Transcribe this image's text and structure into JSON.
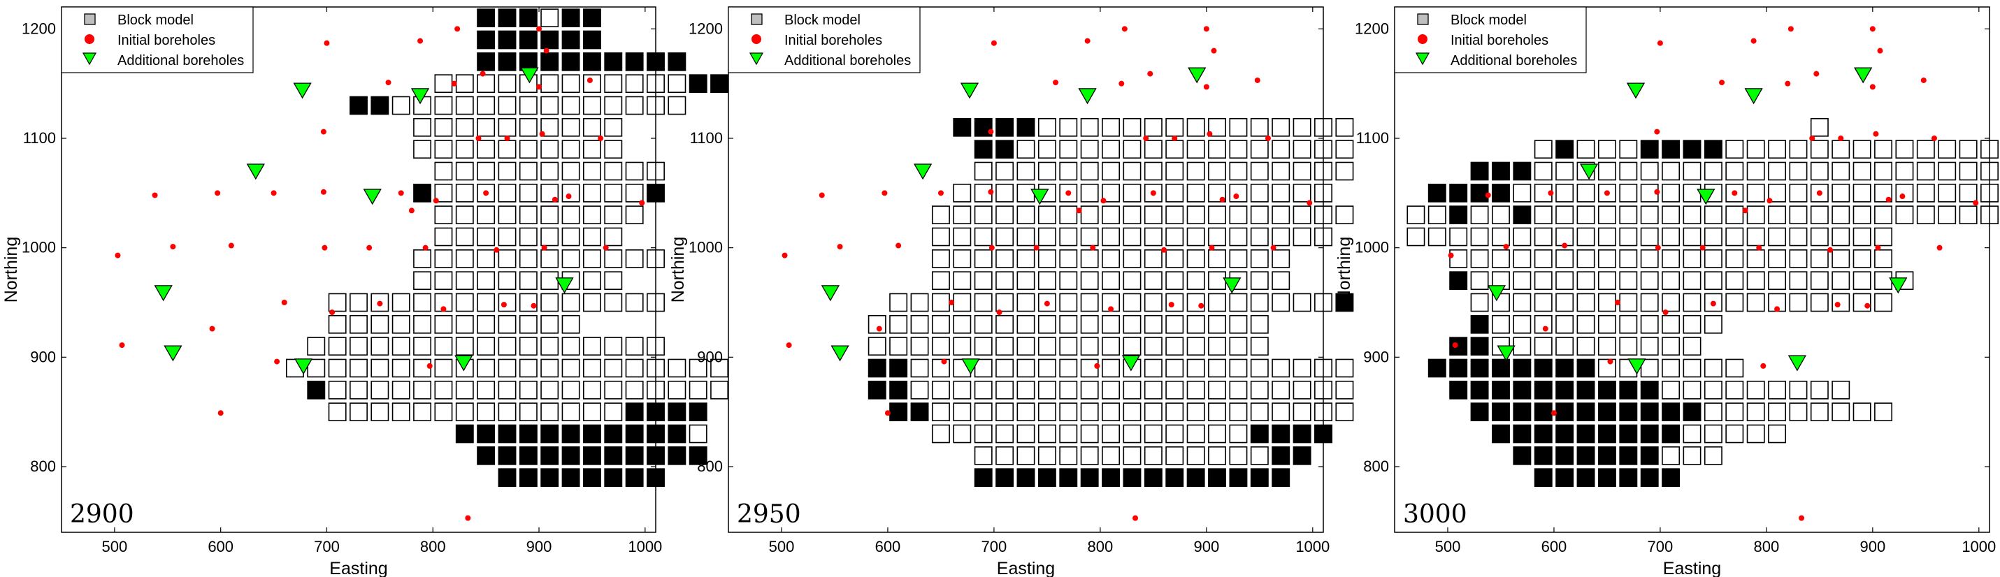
{
  "chart_data": [
    {
      "type": "scatter",
      "panel_label": "2900",
      "xlabel": "Easting",
      "ylabel": "Northing",
      "xlim": [
        450,
        1010
      ],
      "ylim": [
        740,
        1220
      ],
      "xticks": [
        500,
        600,
        700,
        800,
        900,
        1000
      ],
      "yticks": [
        800,
        900,
        1000,
        1100,
        1200
      ],
      "legend_position": "top-left",
      "legend": [
        "Block model",
        "Initial boreholes",
        "Additional boreholes"
      ],
      "block_size": 20,
      "rows": [
        {
          "y": 1210,
          "x0": 850,
          "cells": "bbbwbb"
        },
        {
          "y": 1190,
          "x0": 850,
          "cells": "bbbbbb"
        },
        {
          "y": 1170,
          "x0": 850,
          "cells": "bbbbbbbbbb"
        },
        {
          "y": 1150,
          "x0": 810,
          "cells": "wwwwwwwwwwwwbb"
        },
        {
          "y": 1130,
          "x0": 730,
          "cells": "bbwwwwwwwwwwwwww"
        },
        {
          "y": 1110,
          "x0": 790,
          "cells": "wwwwwwwwww"
        },
        {
          "y": 1090,
          "x0": 790,
          "cells": "wwwwwwwwww"
        },
        {
          "y": 1070,
          "x0": 810,
          "cells": "wwwwwwwwwww"
        },
        {
          "y": 1050,
          "x0": 790,
          "cells": "bwwwwwwwwwwb"
        },
        {
          "y": 1030,
          "x0": 810,
          "cells": "wwwwwwwwww"
        },
        {
          "y": 1010,
          "x0": 810,
          "cells": "wwwwwwwww"
        },
        {
          "y": 990,
          "x0": 790,
          "cells": "wwwwwwwwwwww"
        },
        {
          "y": 970,
          "x0": 790,
          "cells": "wwwwwwwwww"
        },
        {
          "y": 950,
          "x0": 710,
          "cells": "wwwwwwwwwwwwwwww"
        },
        {
          "y": 930,
          "x0": 710,
          "cells": "wwwwwwwwwwww"
        },
        {
          "y": 910,
          "x0": 690,
          "cells": "wwwwwwwwwwwwwwwww"
        },
        {
          "y": 890,
          "x0": 670,
          "cells": "wwwwwwwwwwwwwwwwwwwww"
        },
        {
          "y": 870,
          "x0": 690,
          "cells": "bwwwwwwwwwwwwwwwwwwwww"
        },
        {
          "y": 850,
          "x0": 710,
          "cells": "wwwwwwwwwwwwwwbbbb"
        },
        {
          "y": 830,
          "x0": 830,
          "cells": "bbbbbbbbbbbw"
        },
        {
          "y": 810,
          "x0": 850,
          "cells": "bbbbbbbbbbb"
        },
        {
          "y": 790,
          "x0": 870,
          "cells": "bbbbbbbb"
        }
      ],
      "initial_boreholes": [
        [
          503,
          993
        ],
        [
          507,
          911
        ],
        [
          538,
          1048
        ],
        [
          555,
          1001
        ],
        [
          592,
          926
        ],
        [
          597,
          1050
        ],
        [
          600,
          849
        ],
        [
          610,
          1002
        ],
        [
          650,
          1050
        ],
        [
          653,
          896
        ],
        [
          660,
          950
        ],
        [
          697,
          1106
        ],
        [
          697,
          1051
        ],
        [
          698,
          1000
        ],
        [
          700,
          1187
        ],
        [
          705,
          941
        ],
        [
          740,
          1000
        ],
        [
          750,
          949
        ],
        [
          758,
          1151
        ],
        [
          770,
          1050
        ],
        [
          780,
          1034
        ],
        [
          788,
          1189
        ],
        [
          793,
          1000
        ],
        [
          797,
          892
        ],
        [
          803,
          1043
        ],
        [
          810,
          944
        ],
        [
          820,
          1150
        ],
        [
          823,
          1200
        ],
        [
          833,
          753
        ],
        [
          843,
          1100
        ],
        [
          847,
          1159
        ],
        [
          850,
          1050
        ],
        [
          860,
          998
        ],
        [
          867,
          948
        ],
        [
          870,
          1100
        ],
        [
          895,
          947
        ],
        [
          900,
          1147
        ],
        [
          900,
          1200
        ],
        [
          903,
          1104
        ],
        [
          905,
          1000
        ],
        [
          907,
          1180
        ],
        [
          915,
          1044
        ],
        [
          928,
          1047
        ],
        [
          948,
          1153
        ],
        [
          958,
          1100
        ],
        [
          963,
          1000
        ],
        [
          997,
          1041
        ]
      ],
      "additional_boreholes": [
        [
          546,
          959
        ],
        [
          555,
          904
        ],
        [
          633,
          1070
        ],
        [
          677,
          1144
        ],
        [
          678,
          892
        ],
        [
          743,
          1047
        ],
        [
          788,
          1139
        ],
        [
          829,
          895
        ],
        [
          891,
          1158
        ],
        [
          924,
          966
        ]
      ]
    },
    {
      "type": "scatter",
      "panel_label": "2950",
      "xlabel": "Easting",
      "ylabel": "Northing",
      "xlim": [
        450,
        1010
      ],
      "ylim": [
        740,
        1220
      ],
      "xticks": [
        500,
        600,
        700,
        800,
        900,
        1000
      ],
      "yticks": [
        800,
        900,
        1000,
        1100,
        1200
      ],
      "legend_position": "top-left",
      "legend": [
        "Block model",
        "Initial boreholes",
        "Additional boreholes"
      ],
      "block_size": 20,
      "rows": [
        {
          "y": 1110,
          "x0": 670,
          "cells": "bbbbwwwwwwwwwwwwwww"
        },
        {
          "y": 1090,
          "x0": 690,
          "cells": "bbwwwwwwwwwwwwwwww"
        },
        {
          "y": 1070,
          "x0": 690,
          "cells": "wwwwwwwwwwwwwwwwww"
        },
        {
          "y": 1050,
          "x0": 670,
          "cells": "wwwwwwwwwwwwwwwwww"
        },
        {
          "y": 1030,
          "x0": 650,
          "cells": "wwwwwwwwwwwwwwwwwwww"
        },
        {
          "y": 1010,
          "x0": 650,
          "cells": "wwwwwwwwwwwwwwwwwww"
        },
        {
          "y": 990,
          "x0": 650,
          "cells": "wwwwwwwwwwwwwwwww"
        },
        {
          "y": 970,
          "x0": 650,
          "cells": "wwwwwwwwwwwwwwwww"
        },
        {
          "y": 950,
          "x0": 610,
          "cells": "wwwwwwwwwwwwwwwwwwwwwb"
        },
        {
          "y": 930,
          "x0": 590,
          "cells": "wwwwwwwwwwwwwwwwwww"
        },
        {
          "y": 910,
          "x0": 590,
          "cells": "wwwwwwwwwwwwwwwwwww"
        },
        {
          "y": 890,
          "x0": 590,
          "cells": "bbwwwwwwwwwwwwwwwwwwwww"
        },
        {
          "y": 870,
          "x0": 590,
          "cells": "bbwwwwwwwwwwwwwwwwwwwww"
        },
        {
          "y": 850,
          "x0": 610,
          "cells": "bbwwwwwwwwwwwwwwwwwwww"
        },
        {
          "y": 830,
          "x0": 650,
          "cells": "wwwwwwwwwwwwwwwbbbb"
        },
        {
          "y": 810,
          "x0": 690,
          "cells": "wwwwwwwwwwwwwwbb"
        },
        {
          "y": 790,
          "x0": 690,
          "cells": "bbbbbbbbbbbbbbb"
        }
      ],
      "initial_boreholes": [
        [
          503,
          993
        ],
        [
          507,
          911
        ],
        [
          538,
          1048
        ],
        [
          555,
          1001
        ],
        [
          592,
          926
        ],
        [
          597,
          1050
        ],
        [
          600,
          849
        ],
        [
          610,
          1002
        ],
        [
          650,
          1050
        ],
        [
          653,
          896
        ],
        [
          660,
          950
        ],
        [
          697,
          1106
        ],
        [
          697,
          1051
        ],
        [
          698,
          1000
        ],
        [
          700,
          1187
        ],
        [
          705,
          941
        ],
        [
          740,
          1000
        ],
        [
          750,
          949
        ],
        [
          758,
          1151
        ],
        [
          770,
          1050
        ],
        [
          780,
          1034
        ],
        [
          788,
          1189
        ],
        [
          793,
          1000
        ],
        [
          797,
          892
        ],
        [
          803,
          1043
        ],
        [
          810,
          944
        ],
        [
          820,
          1150
        ],
        [
          823,
          1200
        ],
        [
          833,
          753
        ],
        [
          843,
          1100
        ],
        [
          847,
          1159
        ],
        [
          850,
          1050
        ],
        [
          860,
          998
        ],
        [
          867,
          948
        ],
        [
          870,
          1100
        ],
        [
          895,
          947
        ],
        [
          900,
          1147
        ],
        [
          900,
          1200
        ],
        [
          903,
          1104
        ],
        [
          905,
          1000
        ],
        [
          907,
          1180
        ],
        [
          915,
          1044
        ],
        [
          928,
          1047
        ],
        [
          948,
          1153
        ],
        [
          958,
          1100
        ],
        [
          963,
          1000
        ],
        [
          997,
          1041
        ]
      ],
      "additional_boreholes": [
        [
          546,
          959
        ],
        [
          555,
          904
        ],
        [
          633,
          1070
        ],
        [
          677,
          1144
        ],
        [
          678,
          892
        ],
        [
          743,
          1047
        ],
        [
          788,
          1139
        ],
        [
          829,
          895
        ],
        [
          891,
          1158
        ],
        [
          924,
          966
        ]
      ]
    },
    {
      "type": "scatter",
      "panel_label": "3000",
      "xlabel": "Easting",
      "ylabel": "Northing",
      "xlim": [
        450,
        1010
      ],
      "ylim": [
        740,
        1220
      ],
      "xticks": [
        500,
        600,
        700,
        800,
        900,
        1000
      ],
      "yticks": [
        800,
        900,
        1000,
        1100,
        1200
      ],
      "legend_position": "top-left",
      "legend": [
        "Block model",
        "Initial boreholes",
        "Additional boreholes"
      ],
      "block_size": 20,
      "rows": [
        {
          "y": 1110,
          "x0": 850,
          "cells": "w"
        },
        {
          "y": 1090,
          "x0": 590,
          "cells": "wbwwwbbbbwwwwwwwwwwwwww"
        },
        {
          "y": 1070,
          "x0": 530,
          "cells": "bbbwwwwwwwwwwwwwwwwwwwwwww"
        },
        {
          "y": 1050,
          "x0": 490,
          "cells": "bbbbwwwwwwwwwwwwwwwwwwwwwwwww"
        },
        {
          "y": 1030,
          "x0": 470,
          "cells": "wwbwwbwwwwwwwwwwwwwwwwwwwwwww"
        },
        {
          "y": 1010,
          "x0": 470,
          "cells": "wwwwwwwwwwwwwwwwwwwwwww"
        },
        {
          "y": 990,
          "x0": 510,
          "cells": "wwwwwwwwwwwwwwwwwwwww"
        },
        {
          "y": 970,
          "x0": 510,
          "cells": "bwwwwwwwwwwwwwwwwwwwww"
        },
        {
          "y": 950,
          "x0": 530,
          "cells": "wwwwwwwwwwwwwwwwwwww"
        },
        {
          "y": 930,
          "x0": 530,
          "cells": "bwwwwwwwwwww"
        },
        {
          "y": 910,
          "x0": 510,
          "cells": "bbwwwwwwwwww"
        },
        {
          "y": 890,
          "x0": 490,
          "cells": "bbbbbbbbwwwwwww"
        },
        {
          "y": 870,
          "x0": 510,
          "cells": "bbbbbbbbbbwwwwwwwww"
        },
        {
          "y": 850,
          "x0": 530,
          "cells": "bbbbbbbbbbbwwwwwwwww"
        },
        {
          "y": 830,
          "x0": 550,
          "cells": "bbbbbbbbbwwwww"
        },
        {
          "y": 810,
          "x0": 570,
          "cells": "bbbbbbbwww"
        },
        {
          "y": 790,
          "x0": 590,
          "cells": "bbbbbbb"
        }
      ],
      "initial_boreholes": [
        [
          503,
          993
        ],
        [
          507,
          911
        ],
        [
          538,
          1048
        ],
        [
          555,
          1001
        ],
        [
          592,
          926
        ],
        [
          597,
          1050
        ],
        [
          600,
          849
        ],
        [
          610,
          1002
        ],
        [
          650,
          1050
        ],
        [
          653,
          896
        ],
        [
          660,
          950
        ],
        [
          697,
          1106
        ],
        [
          697,
          1051
        ],
        [
          698,
          1000
        ],
        [
          700,
          1187
        ],
        [
          705,
          941
        ],
        [
          740,
          1000
        ],
        [
          750,
          949
        ],
        [
          758,
          1151
        ],
        [
          770,
          1050
        ],
        [
          780,
          1034
        ],
        [
          788,
          1189
        ],
        [
          793,
          1000
        ],
        [
          797,
          892
        ],
        [
          803,
          1043
        ],
        [
          810,
          944
        ],
        [
          820,
          1150
        ],
        [
          823,
          1200
        ],
        [
          833,
          753
        ],
        [
          843,
          1100
        ],
        [
          847,
          1159
        ],
        [
          850,
          1050
        ],
        [
          860,
          998
        ],
        [
          867,
          948
        ],
        [
          870,
          1100
        ],
        [
          895,
          947
        ],
        [
          900,
          1147
        ],
        [
          900,
          1200
        ],
        [
          903,
          1104
        ],
        [
          905,
          1000
        ],
        [
          907,
          1180
        ],
        [
          915,
          1044
        ],
        [
          928,
          1047
        ],
        [
          948,
          1153
        ],
        [
          958,
          1100
        ],
        [
          963,
          1000
        ],
        [
          997,
          1041
        ]
      ],
      "additional_boreholes": [
        [
          546,
          959
        ],
        [
          555,
          904
        ],
        [
          633,
          1070
        ],
        [
          677,
          1144
        ],
        [
          678,
          892
        ],
        [
          743,
          1047
        ],
        [
          788,
          1139
        ],
        [
          829,
          895
        ],
        [
          891,
          1158
        ],
        [
          924,
          966
        ]
      ]
    }
  ],
  "colors": {
    "block_white": "#ffffff",
    "block_black": "#000000",
    "initial_borehole": "#ff0000",
    "additional_borehole": "#00ff00",
    "legend_block": "#bfbfbf"
  }
}
